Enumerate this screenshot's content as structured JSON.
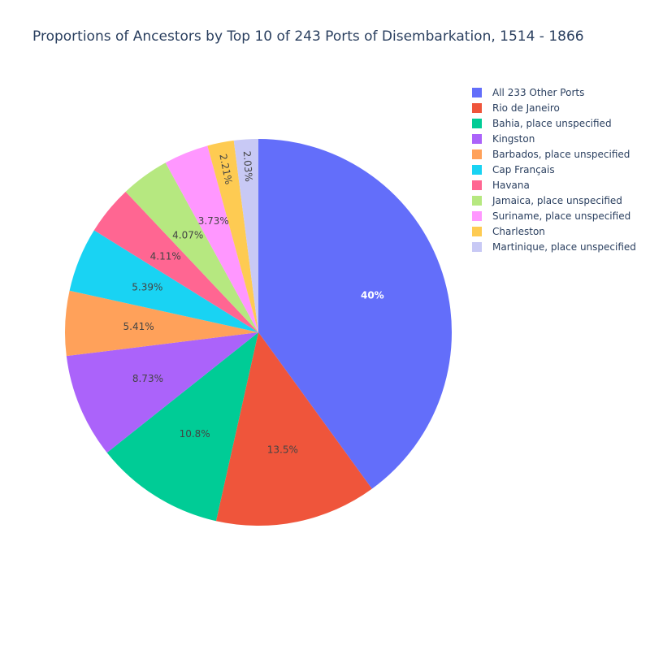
{
  "chart_data": {
    "type": "pie",
    "title": "Proportions of Ancestors by Top 10 of 243 Ports of Disembarkation, 1514 - 1866",
    "labels": [
      "All 233 Other Ports",
      "Rio de Janeiro",
      "Bahia, place unspecified",
      "Kingston",
      "Barbados, place unspecified",
      "Cap Français",
      "Havana",
      "Jamaica, place unspecified",
      "Suriname, place unspecified",
      "Charleston",
      "Martinique, place unspecified"
    ],
    "values": [
      40.0,
      13.5,
      10.8,
      8.73,
      5.41,
      5.39,
      4.11,
      4.07,
      3.73,
      2.21,
      2.03
    ],
    "text_labels": [
      "40%",
      "13.5%",
      "10.8%",
      "8.73%",
      "5.41%",
      "5.39%",
      "4.11%",
      "4.07%",
      "3.73%",
      "2.21%",
      "2.03%"
    ],
    "colors": [
      "#636efa",
      "#ef553b",
      "#00cc96",
      "#ab63fa",
      "#ffa15a",
      "#19d3f3",
      "#ff6692",
      "#b6e880",
      "#ff97ff",
      "#fecb52",
      "#c8c9f5"
    ],
    "label_colors": [
      "#ffffff",
      "#444444",
      "#444444",
      "#444444",
      "#444444",
      "#444444",
      "#444444",
      "#444444",
      "#444444",
      "#444444",
      "#444444"
    ],
    "legend_placement": "top-right",
    "direction": "clockwise",
    "start": "top"
  }
}
